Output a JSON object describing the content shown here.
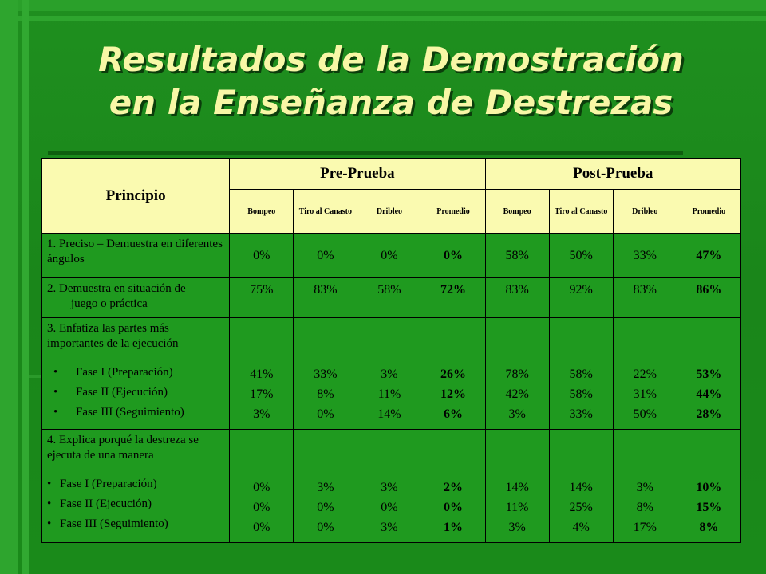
{
  "title": {
    "line1": "Resultados de la Demostración",
    "line2": "en la Enseñanza de Destrezas"
  },
  "table": {
    "principio_header": "Principio",
    "groups": [
      "Pre-Prueba",
      "Post-Prueba"
    ],
    "subheaders": [
      "Bompeo",
      "Tiro al Canasto",
      "Dribleo",
      "Promedio",
      "Bompeo",
      "Tiro al Canasto",
      "Dribleo",
      "Promedio"
    ],
    "rows": [
      {
        "principle": "1. Preciso – Demuestra en diferentes ángulos",
        "values": [
          "0%",
          "0%",
          "0%",
          "0%",
          "58%",
          "50%",
          "33%",
          "47%"
        ]
      },
      {
        "principle_line1": "2. Demuestra en situación de",
        "principle_line2": "juego o práctica",
        "values": [
          "75%",
          "83%",
          "58%",
          "72%",
          "83%",
          "92%",
          "83%",
          "86%"
        ]
      },
      {
        "principle": "3. Enfatiza las partes más importantes de la ejecución",
        "phases": [
          "Fase I (Preparación)",
          "Fase II (Ejecución)",
          "Fase III (Seguimiento)"
        ],
        "values": [
          [
            "41%",
            "17%",
            "3%"
          ],
          [
            "33%",
            "8%",
            "0%"
          ],
          [
            "3%",
            "11%",
            "14%"
          ],
          [
            "26%",
            "12%",
            "6%"
          ],
          [
            "78%",
            "42%",
            "3%"
          ],
          [
            "58%",
            "58%",
            "33%"
          ],
          [
            "22%",
            "31%",
            "50%"
          ],
          [
            "53%",
            "44%",
            "28%"
          ]
        ]
      },
      {
        "principle": "4. Explica porqué la destreza se ejecuta de una manera",
        "phases": [
          "Fase I (Preparación)",
          "Fase II (Ejecución)",
          "Fase III (Seguimiento)"
        ],
        "values": [
          [
            "0%",
            "0%",
            "0%"
          ],
          [
            "3%",
            "0%",
            "0%"
          ],
          [
            "3%",
            "0%",
            "3%"
          ],
          [
            "2%",
            "0%",
            "1%"
          ],
          [
            "14%",
            "11%",
            "3%"
          ],
          [
            "14%",
            "25%",
            "4%"
          ],
          [
            "3%",
            "8%",
            "17%"
          ],
          [
            "10%",
            "15%",
            "8%"
          ]
        ]
      }
    ]
  }
}
